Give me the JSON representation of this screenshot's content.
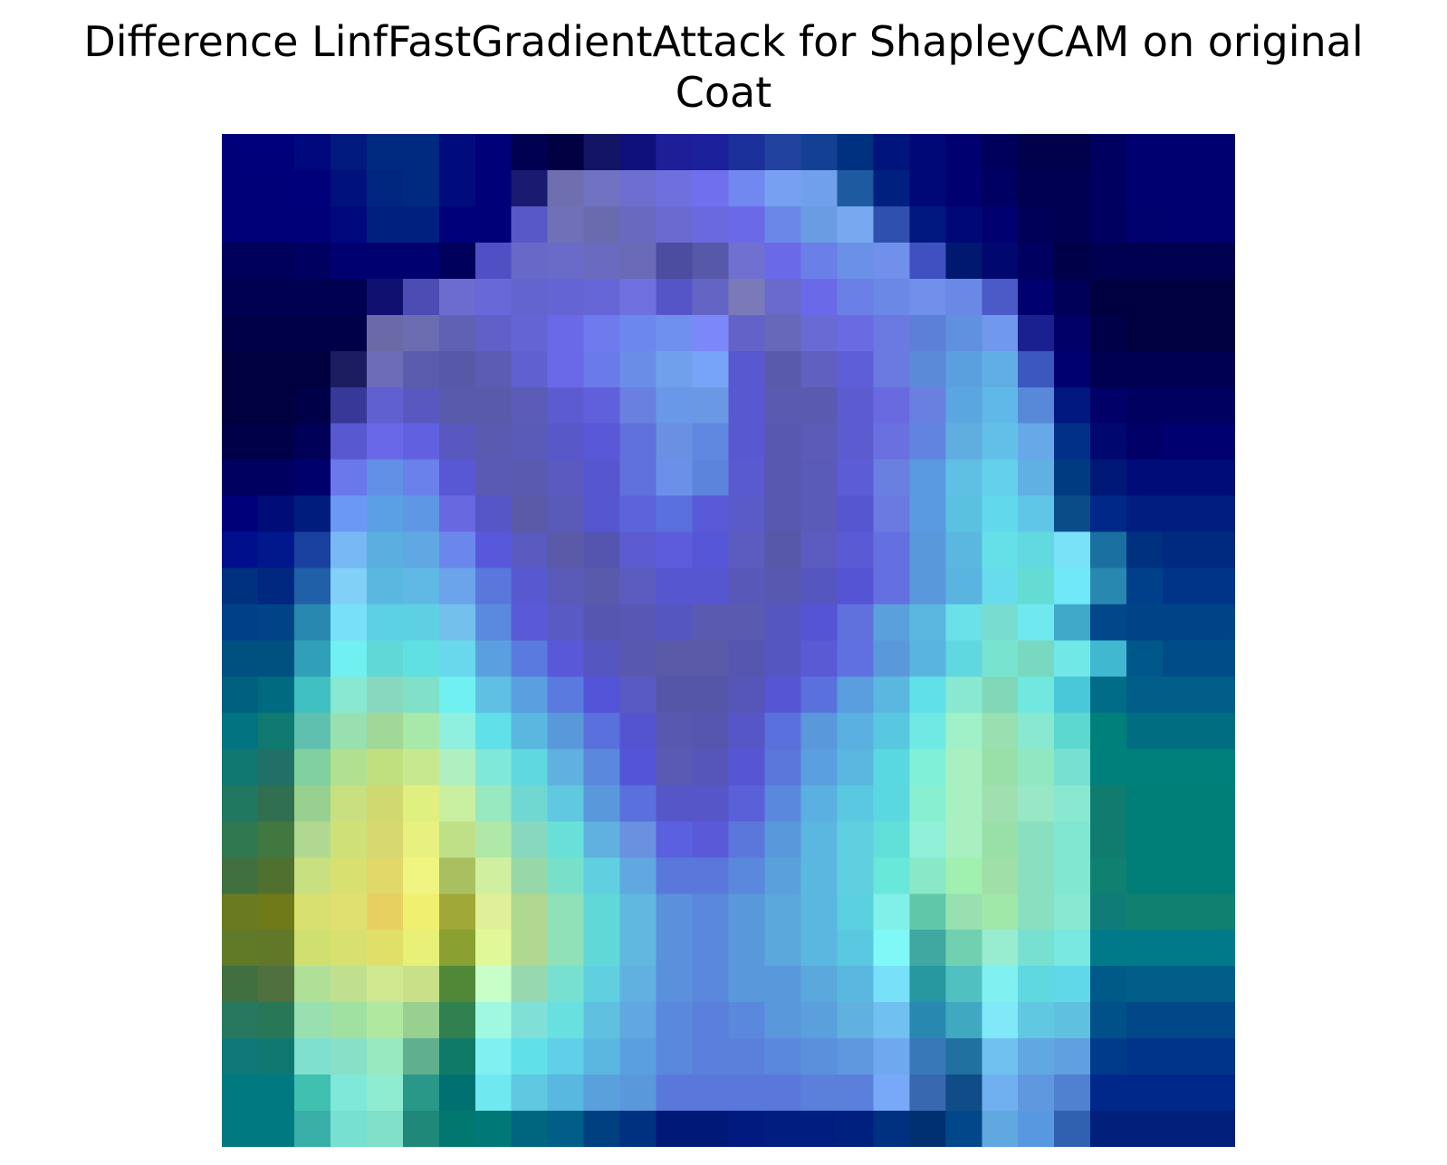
{
  "chart_data": {
    "type": "heatmap",
    "title_lines": [
      "Difference LinfFastGradientAttack for ShapleyCAM on original",
      "Coat"
    ],
    "grid": false,
    "axes_visible": false,
    "rows": 28,
    "cols": 28,
    "cells": [
      [
        "#00007b",
        "#00007b",
        "#00087e",
        "#001a7f",
        "#002a80",
        "#002a80",
        "#000c7c",
        "#000078",
        "#000052",
        "#000042",
        "#141464",
        "#10107c",
        "#1e1e98",
        "#1d209b",
        "#1c309c",
        "#2242a0",
        "#144094",
        "#003080",
        "#00147e",
        "#000878",
        "#000070",
        "#00005c",
        "#00004b",
        "#00004b",
        "#000060",
        "#000070",
        "#000070",
        "#000070"
      ],
      [
        "#000078",
        "#000078",
        "#00007b",
        "#00107c",
        "#002780",
        "#002a80",
        "#000c7c",
        "#000078",
        "#1a1a70",
        "#6f6fb0",
        "#7272c2",
        "#6e6ed0",
        "#6f6fe0",
        "#7070ee",
        "#7088f0",
        "#78a0f2",
        "#70a0ec",
        "#1e5aa0",
        "#002080",
        "#000878",
        "#000070",
        "#000062",
        "#000050",
        "#000050",
        "#000060",
        "#000070",
        "#000070",
        "#000070"
      ],
      [
        "#000078",
        "#000078",
        "#000078",
        "#00087e",
        "#002080",
        "#002080",
        "#00007b",
        "#000078",
        "#5858c8",
        "#7070b8",
        "#6a6aaf",
        "#6969c0",
        "#6a6ad0",
        "#6a6ade",
        "#6a6ae8",
        "#6a88e8",
        "#6a9ce4",
        "#78a8f0",
        "#3050b0",
        "#001880",
        "#000878",
        "#000070",
        "#000058",
        "#000050",
        "#000060",
        "#00006e",
        "#000070",
        "#000070"
      ],
      [
        "#00005c",
        "#00005c",
        "#000060",
        "#000070",
        "#000070",
        "#000070",
        "#00005c",
        "#5050c4",
        "#6868c8",
        "#6a6ac8",
        "#6a6ac0",
        "#6a6ab8",
        "#4c4ca0",
        "#5858a8",
        "#7070d0",
        "#6a6ae8",
        "#6a80e8",
        "#6a90e8",
        "#7090ec",
        "#4050c0",
        "#001870",
        "#000870",
        "#000060",
        "#000048",
        "#000050",
        "#000050",
        "#000050",
        "#000050"
      ],
      [
        "#000050",
        "#000050",
        "#000050",
        "#000050",
        "#101070",
        "#4c4cb4",
        "#6b6bd0",
        "#6868d8",
        "#6464d0",
        "#6464d4",
        "#6666d8",
        "#7070e0",
        "#5555c8",
        "#6464c4",
        "#7a7ab8",
        "#6a6acc",
        "#6a6ae8",
        "#6a80e6",
        "#6a88e6",
        "#7090ec",
        "#6a88e6",
        "#4c5ac8",
        "#000070",
        "#000058",
        "#000040",
        "#000040",
        "#000040",
        "#000040"
      ],
      [
        "#000048",
        "#000048",
        "#000048",
        "#000048",
        "#6a6aa8",
        "#6c6cb0",
        "#6060b4",
        "#6060c8",
        "#6464d4",
        "#6a6ae8",
        "#6e7aee",
        "#6c88ee",
        "#7090f0",
        "#7c88f8",
        "#6262c8",
        "#6868b8",
        "#6a6ad4",
        "#6a6ae2",
        "#6a7ae0",
        "#5c80d8",
        "#6090e0",
        "#7098ec",
        "#1a2090",
        "#000068",
        "#000048",
        "#000040",
        "#000040",
        "#000040"
      ],
      [
        "#000040",
        "#000040",
        "#000040",
        "#1c1c60",
        "#6c6cb8",
        "#5c5cac",
        "#5858a8",
        "#5c5cb4",
        "#6060d0",
        "#6a6ae8",
        "#6a7ae8",
        "#6a8ee8",
        "#70a0ec",
        "#78a4f8",
        "#5858d0",
        "#5a5aac",
        "#6060c0",
        "#5e5ed8",
        "#6a7ae0",
        "#5a8ad8",
        "#5aa0de",
        "#60aee4",
        "#3a58c0",
        "#000070",
        "#000050",
        "#000050",
        "#000050",
        "#000050"
      ],
      [
        "#000040",
        "#000040",
        "#000048",
        "#383898",
        "#6060d0",
        "#5858c0",
        "#5a5aac",
        "#5a5aaa",
        "#5c5cb8",
        "#5c5cd0",
        "#6060dc",
        "#6a80e0",
        "#6a98e8",
        "#6a98e4",
        "#5858d0",
        "#5a5ab0",
        "#5a5ab0",
        "#5c5cd0",
        "#6a6ae0",
        "#6a80e0",
        "#5aa6e0",
        "#60b8e8",
        "#5888d8",
        "#001880",
        "#000068",
        "#000060",
        "#000060",
        "#000060"
      ],
      [
        "#000048",
        "#000048",
        "#000058",
        "#5858d0",
        "#6868e8",
        "#6060e0",
        "#5858c0",
        "#5a5ab0",
        "#5a5ab8",
        "#5858c8",
        "#5858d8",
        "#6070dc",
        "#6a90e4",
        "#6088e0",
        "#5858d0",
        "#5858b0",
        "#5c5cb8",
        "#5c5cd0",
        "#6a70e0",
        "#6084e0",
        "#60aee0",
        "#62c0e8",
        "#66a8e8",
        "#003088",
        "#000870",
        "#000068",
        "#000070",
        "#000070"
      ],
      [
        "#000060",
        "#000060",
        "#00006c",
        "#6a78ec",
        "#6290e6",
        "#6a80ea",
        "#5858d4",
        "#5a5ab4",
        "#5a5ab0",
        "#5a5ac0",
        "#5656d0",
        "#6070dc",
        "#6a90e8",
        "#5c84dc",
        "#5a5ad0",
        "#5858b0",
        "#5a5ab8",
        "#5c5cd6",
        "#6a80e0",
        "#5a9ae0",
        "#60c0e4",
        "#64d0ec",
        "#60b0e4",
        "#003a80",
        "#001878",
        "#000c78",
        "#000c78",
        "#000c78"
      ],
      [
        "#00007a",
        "#000c78",
        "#001c7c",
        "#6a98f4",
        "#5aa0e4",
        "#5e98e4",
        "#6868e0",
        "#5656c8",
        "#5a5aa8",
        "#5a5ab8",
        "#5656d0",
        "#5c64dc",
        "#5a70dc",
        "#5a5ad8",
        "#5a5ac8",
        "#5858b0",
        "#5a5ab8",
        "#5656d0",
        "#6a7ae0",
        "#5a9ae0",
        "#5ac2e0",
        "#62d8ec",
        "#60c6e8",
        "#0a4c88",
        "#002888",
        "#001e80",
        "#001e80",
        "#001e80"
      ],
      [
        "#00108c",
        "#00188c",
        "#1a40a0",
        "#78b8f4",
        "#5aaee0",
        "#60a8e4",
        "#6a88ec",
        "#5858dc",
        "#5a5ac0",
        "#5a5aa8",
        "#5555b0",
        "#5c5cd0",
        "#5c5cdc",
        "#5656d8",
        "#5c5cc0",
        "#5858a8",
        "#5c5cc0",
        "#5a5ad4",
        "#6470e0",
        "#5a98dc",
        "#5ab8e0",
        "#66e0e8",
        "#62d8e0",
        "#7ae2f8",
        "#1a70a0",
        "#003080",
        "#002a80",
        "#002a80"
      ],
      [
        "#003080",
        "#002880",
        "#2060a8",
        "#80d0f8",
        "#5ab8e0",
        "#60b8e4",
        "#6ca4ec",
        "#5a78dc",
        "#5858d0",
        "#5a5ab8",
        "#5a5aac",
        "#5c5cc0",
        "#5656d0",
        "#5656d0",
        "#5858b8",
        "#5858b0",
        "#5656c0",
        "#5454d4",
        "#6470e0",
        "#5a98dc",
        "#5ab4e0",
        "#66dcec",
        "#64dcd4",
        "#70e8f8",
        "#2888b0",
        "#00408a",
        "#003488",
        "#003488"
      ],
      [
        "#004088",
        "#004488",
        "#2888b0",
        "#78e0f8",
        "#5cd0e4",
        "#5ed0e4",
        "#74c0ec",
        "#5a8ae0",
        "#5a5ad8",
        "#5a5ac4",
        "#5656b0",
        "#5858b4",
        "#5656c0",
        "#5a5ab0",
        "#5a5ab0",
        "#5656c0",
        "#5454d4",
        "#6070dc",
        "#5aa0dc",
        "#5ab8e0",
        "#6ae0e8",
        "#78dcd0",
        "#70e8f0",
        "#40a8c8",
        "#00488a",
        "#004488",
        "#004488",
        "#004488"
      ],
      [
        "#005080",
        "#005080",
        "#30a0b8",
        "#70f0f0",
        "#60d8d8",
        "#60e0e0",
        "#6ad8ec",
        "#5aa0e0",
        "#5a7ae0",
        "#5858d8",
        "#5656c0",
        "#5858b0",
        "#5a5aa8",
        "#5a5aa8",
        "#5656b0",
        "#5656c0",
        "#5a5ad4",
        "#6070e0",
        "#5a98dc",
        "#5ab4e0",
        "#60d8e0",
        "#78e4d0",
        "#78d8c0",
        "#70e8e8",
        "#40b8d0",
        "#00588a",
        "#004c88",
        "#004c88"
      ],
      [
        "#006080",
        "#006a80",
        "#40c0c0",
        "#88e8d0",
        "#88d8c0",
        "#80e0c8",
        "#70f0f0",
        "#60c0e4",
        "#5aa0e0",
        "#5a7ae0",
        "#5454d8",
        "#5a5ac4",
        "#5656a8",
        "#5656a8",
        "#5656b8",
        "#5656d4",
        "#5a70dc",
        "#5a9ee0",
        "#5ab8e0",
        "#60e0e8",
        "#88e8d0",
        "#80d8b8",
        "#70e8e0",
        "#48c8d8",
        "#006c88",
        "#005e88",
        "#005e88",
        "#005e88"
      ],
      [
        "#007480",
        "#107a70",
        "#60c0b0",
        "#98e0b0",
        "#a0d898",
        "#a8e8a8",
        "#90f0e0",
        "#60e0e8",
        "#5ab8e0",
        "#5a98dc",
        "#5a70dc",
        "#5454d0",
        "#5858b0",
        "#5656b0",
        "#5656c8",
        "#5a70dc",
        "#5a98dc",
        "#5ab0e0",
        "#58c8e0",
        "#70e8e4",
        "#a0f0c8",
        "#98e0b0",
        "#88e8d0",
        "#5cd8d0",
        "#00807a",
        "#006e80",
        "#006e80",
        "#006e80"
      ],
      [
        "#107870",
        "#207068",
        "#80d0a0",
        "#b0e090",
        "#c0e080",
        "#c8e890",
        "#b0f0c0",
        "#80e8d8",
        "#60d8e0",
        "#60b0e0",
        "#5a88dc",
        "#5454d8",
        "#5a5ab4",
        "#5656b8",
        "#5656d4",
        "#5a78dc",
        "#5aa0e0",
        "#5ab8e0",
        "#5ad8e0",
        "#80f0d8",
        "#a8f0c0",
        "#98e0a8",
        "#90e8c0",
        "#78e0d0",
        "#00807a",
        "#00807a",
        "#00807a",
        "#00807a"
      ],
      [
        "#207860",
        "#307050",
        "#98d090",
        "#c8e080",
        "#d0d870",
        "#e0f080",
        "#c8f0a0",
        "#98e8c0",
        "#70d8d0",
        "#60c8e0",
        "#5a98dc",
        "#5a70dc",
        "#5656c8",
        "#5656c8",
        "#5a60d8",
        "#5a88dc",
        "#5ab0e0",
        "#5ac8e0",
        "#5ad8e0",
        "#88f0d0",
        "#a8f0c0",
        "#a0e0b0",
        "#98e8c8",
        "#88e8d0",
        "#107c70",
        "#007e78",
        "#007e78",
        "#007e78"
      ],
      [
        "#307850",
        "#407840",
        "#b0d890",
        "#d0e078",
        "#d8d870",
        "#e8f080",
        "#c0e088",
        "#b0e8a8",
        "#88d8c0",
        "#68e0d8",
        "#60b0e0",
        "#6a90e0",
        "#5a60e0",
        "#5a5ad8",
        "#5a78dc",
        "#5a98dc",
        "#5ab8e0",
        "#60d0e0",
        "#60e0d8",
        "#90f0d8",
        "#a8f0c0",
        "#98e0a8",
        "#88e0c0",
        "#80e8d0",
        "#107c70",
        "#007e78",
        "#007e78",
        "#007e78"
      ],
      [
        "#407040",
        "#507030",
        "#c8e080",
        "#d8e070",
        "#e0d868",
        "#f0f480",
        "#a8c060",
        "#d0f0a0",
        "#98d8a8",
        "#78e0c8",
        "#60d0e0",
        "#60a8e0",
        "#5a78dc",
        "#5a78dc",
        "#5a88dc",
        "#5aa0dc",
        "#5ab8e0",
        "#60d0e0",
        "#68e8d8",
        "#88e8c8",
        "#a0f0b0",
        "#a0e0a8",
        "#88e0c0",
        "#80e8d0",
        "#108070",
        "#007e78",
        "#007e78",
        "#007e78"
      ],
      [
        "#6a7a20",
        "#707a18",
        "#d8e070",
        "#e0e070",
        "#e8d060",
        "#f0f070",
        "#a0a838",
        "#e0f098",
        "#b0d890",
        "#90e0b8",
        "#60d8d8",
        "#60b8e0",
        "#5a90dc",
        "#5a88dc",
        "#5a98dc",
        "#5aa8dc",
        "#5ab8e0",
        "#5ad0e0",
        "#80f0e8",
        "#60c8a8",
        "#98e0b0",
        "#a0e8a8",
        "#88e0c0",
        "#88e8d0",
        "#107c78",
        "#108070",
        "#108070",
        "#108070"
      ],
      [
        "#607a28",
        "#607828",
        "#d0e070",
        "#d8e070",
        "#e0e068",
        "#e8f078",
        "#8aa030",
        "#e0f898",
        "#b0d890",
        "#90e0b8",
        "#60d8d8",
        "#60b8e0",
        "#5a90dc",
        "#5a88dc",
        "#5a98dc",
        "#5aa8dc",
        "#5ab8e0",
        "#5ac8e0",
        "#80f8f8",
        "#40a8a0",
        "#70d0b0",
        "#98ecd0",
        "#78e0d0",
        "#78e8e0",
        "#007a88",
        "#007a88",
        "#007a88",
        "#007a88"
      ],
      [
        "#407040",
        "#507040",
        "#b0e098",
        "#c0e090",
        "#d0e890",
        "#c8e088",
        "#508838",
        "#c8ffc8",
        "#98d8b0",
        "#78e0d0",
        "#60d0e0",
        "#60b0e0",
        "#5a90dc",
        "#5a88dc",
        "#5a98dc",
        "#5a98dc",
        "#5aa8dc",
        "#5ab8e0",
        "#78e0f8",
        "#2898a0",
        "#50c0c0",
        "#80f0f0",
        "#60d8e0",
        "#60d8e8",
        "#005a88",
        "#005e88",
        "#005e88",
        "#005e88"
      ],
      [
        "#287860",
        "#287858",
        "#98e0b0",
        "#a0e0a0",
        "#b0e8a0",
        "#98d090",
        "#308050",
        "#a0f8e0",
        "#80e0d8",
        "#68e0e0",
        "#60c0e0",
        "#60a8e0",
        "#5a88dc",
        "#5a80dc",
        "#5a88dc",
        "#5a98dc",
        "#5aa0dc",
        "#60b0e0",
        "#70c0f0",
        "#2888b0",
        "#40a8c0",
        "#80e8f8",
        "#60c8e0",
        "#60c0e0",
        "#00508a",
        "#004888",
        "#004888",
        "#004888"
      ],
      [
        "#107878",
        "#107870",
        "#80e0d0",
        "#88e0c8",
        "#98e8c0",
        "#60b090",
        "#107a68",
        "#80f0f0",
        "#60e0e8",
        "#60d0e8",
        "#5ab8e0",
        "#5aa0e0",
        "#5a88dc",
        "#5a80dc",
        "#5a80dc",
        "#5a88dc",
        "#5a90dc",
        "#6098e0",
        "#70a8f0",
        "#3878b8",
        "#2070a0",
        "#70c0f0",
        "#60a8e0",
        "#60a0e0",
        "#003a8a",
        "#00348a",
        "#00348a",
        "#00348a"
      ],
      [
        "#007a80",
        "#007a80",
        "#40c0b0",
        "#80e8d8",
        "#90ecd0",
        "#2a9888",
        "#007070",
        "#70e8f0",
        "#60c8e0",
        "#58b8e0",
        "#5aa0dc",
        "#5a98dc",
        "#5a78dc",
        "#5a78dc",
        "#5a78dc",
        "#5a78dc",
        "#5a80dc",
        "#5a80dc",
        "#78a8f8",
        "#3868b0",
        "#104c88",
        "#70b0f0",
        "#6098e0",
        "#5080d0",
        "#00288a",
        "#00288a",
        "#00288a",
        "#00288a"
      ],
      [
        "#007a80",
        "#007a80",
        "#38b0a8",
        "#78e0d0",
        "#80e0c8",
        "#208878",
        "#007870",
        "#007878",
        "#006680",
        "#005e88",
        "#004080",
        "#003080",
        "#001878",
        "#001878",
        "#001a80",
        "#001e80",
        "#001e80",
        "#002080",
        "#003080",
        "#003070",
        "#00488a",
        "#60a8e0",
        "#5898e0",
        "#3060b0",
        "#00207c",
        "#00207c",
        "#00207c",
        "#00207c"
      ]
    ]
  }
}
